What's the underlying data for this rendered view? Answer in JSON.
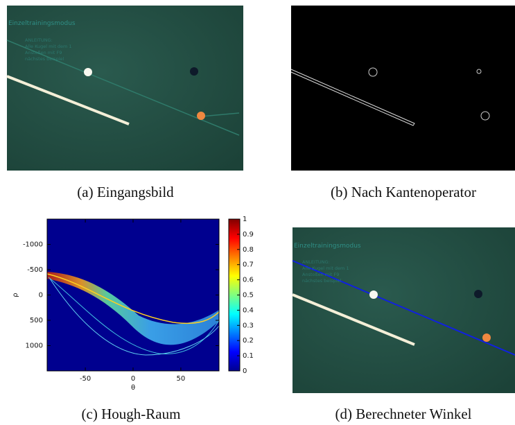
{
  "panels": [
    {
      "caption": "(a) Eingangsbild",
      "overlay_title": "Einzeltrainingsmodus",
      "overlay_lines": [
        "ANLEITUNG:",
        "Alle Kugel mit dem 1",
        "Anstoßen mit F9",
        "nächstes beispiel"
      ]
    },
    {
      "caption": "(b) Nach Kantenoperator"
    },
    {
      "caption": "(c) Hough-Raum"
    },
    {
      "caption": "(d) Berechneter Winkel",
      "overlay_title": "Einzeltrainingsmodus",
      "overlay_lines": [
        "ANLEITUNG:",
        "Alle Kugel mit dem 1",
        "Anstoßen mit F9",
        "nächstes beispiel"
      ]
    }
  ],
  "hough_plot": {
    "type": "heatmap",
    "x_label": "θ",
    "y_label": "ρ",
    "xlim": [
      -90,
      90
    ],
    "xticks": [
      -50,
      0,
      50
    ],
    "ylim": [
      -1500,
      1500
    ],
    "yticks": [
      -1000,
      -500,
      0,
      500,
      1000
    ],
    "colorbar_lim": [
      0,
      1
    ],
    "colorbar_ticks": [
      0,
      0.1,
      0.2,
      0.3,
      0.4,
      0.5,
      0.6,
      0.7,
      0.8,
      0.9,
      1
    ]
  }
}
